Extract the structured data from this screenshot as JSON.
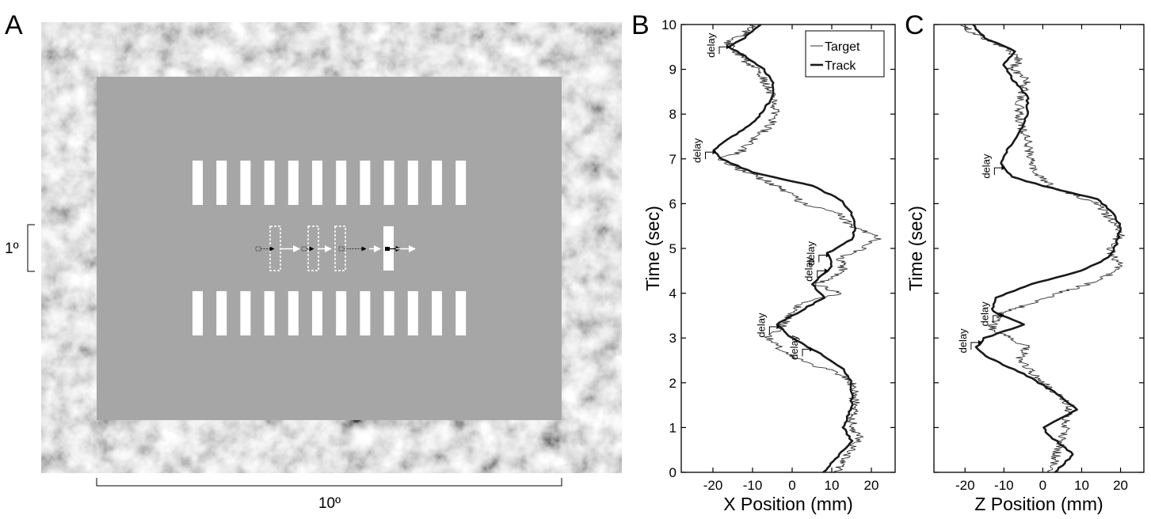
{
  "panels": {
    "a": {
      "label": "A",
      "scale_h": "10º",
      "scale_v": "1º"
    },
    "b": {
      "label": "B"
    },
    "c": {
      "label": "C"
    }
  },
  "delay_label": "delay",
  "legend": {
    "target": "Target",
    "track": "Track"
  },
  "colors": {
    "background": "#ffffff",
    "stimulus_gray": "#a6a6a6",
    "bars": "#ffffff",
    "ink": "#000000",
    "target_line": "#333333",
    "track_line": "#1a1a1a"
  },
  "chart_data": [
    {
      "type": "line",
      "title": "",
      "xlabel": "X Position (mm)",
      "ylabel": "Time (sec)",
      "xlim": [
        -28,
        26
      ],
      "ylim": [
        0,
        10
      ],
      "xticks": [
        -20,
        -10,
        0,
        10,
        20
      ],
      "xtick_labels": [
        "-20",
        "-10",
        "0",
        "10",
        "20"
      ],
      "yticks": [
        0,
        1,
        2,
        3,
        4,
        5,
        6,
        7,
        8,
        9,
        10
      ],
      "ytick_labels": [
        "0",
        "1",
        "2",
        "3",
        "4",
        "5",
        "6",
        "7",
        "8",
        "9",
        "10"
      ],
      "legend_position": "top-right",
      "delay_markers": [
        9.5,
        7.15,
        4.85,
        4.5,
        3.25,
        2.75
      ],
      "series": [
        {
          "name": "Target",
          "style": "thin",
          "t": [
            0,
            0.4,
            0.8,
            1.0,
            1.5,
            2.0,
            2.2,
            2.5,
            2.75,
            3.0,
            3.2,
            3.5,
            3.8,
            4.0,
            4.2,
            4.5,
            4.8,
            5.0,
            5.25,
            5.5,
            5.8,
            6.0,
            6.4,
            6.8,
            7.0,
            7.15,
            7.4,
            7.7,
            8.0,
            8.3,
            8.6,
            9.0,
            9.2,
            9.4,
            9.6,
            9.8,
            10.0
          ],
          "x": [
            11,
            14,
            17,
            15,
            16,
            15,
            12,
            2,
            -3,
            -6,
            -3,
            -1,
            3,
            12,
            6,
            13,
            12,
            18,
            22,
            15,
            11,
            3,
            -4,
            -14,
            -18,
            -13,
            -10,
            -6,
            -4,
            -5,
            -6,
            -9,
            -12,
            -14,
            -16,
            -12,
            -10
          ]
        },
        {
          "name": "Track",
          "style": "thick",
          "t": [
            0,
            0.3,
            0.7,
            1.0,
            1.5,
            2.0,
            2.3,
            2.6,
            3.0,
            3.3,
            3.6,
            3.9,
            4.2,
            4.6,
            4.9,
            5.2,
            5.5,
            5.8,
            6.1,
            6.4,
            6.7,
            7.0,
            7.2,
            7.5,
            7.8,
            8.1,
            8.4,
            8.7,
            9.0,
            9.3,
            9.5,
            9.7,
            10.0
          ],
          "x": [
            8,
            11,
            15,
            13,
            15,
            15,
            13,
            8,
            0,
            -4,
            2,
            8,
            5,
            10,
            9,
            15,
            16,
            15,
            12,
            5,
            -10,
            -18,
            -20,
            -15,
            -10,
            -7,
            -5,
            -5,
            -7,
            -12,
            -16,
            -12,
            -8
          ]
        }
      ]
    },
    {
      "type": "line",
      "title": "",
      "xlabel": "Z Position (mm)",
      "ylabel": "Time (sec)",
      "xlim": [
        -28,
        26
      ],
      "ylim": [
        0,
        10
      ],
      "xticks": [
        -20,
        -10,
        0,
        10,
        20
      ],
      "xtick_labels": [
        "-20",
        "-10",
        "0",
        "10",
        "20"
      ],
      "yticks": [
        0,
        1,
        2,
        3,
        4,
        5,
        6,
        7,
        8,
        9,
        10
      ],
      "ytick_labels": [
        "0",
        "1",
        "2",
        "3",
        "4",
        "5",
        "6",
        "7",
        "8",
        "9",
        "10"
      ],
      "delay_markers": [
        6.8,
        3.5,
        2.9
      ],
      "series": [
        {
          "name": "Target",
          "style": "thin",
          "t": [
            0,
            0.5,
            1.0,
            1.5,
            2.0,
            2.5,
            2.8,
            3.0,
            3.2,
            3.5,
            4.0,
            4.3,
            4.6,
            5.0,
            5.3,
            5.6,
            6.0,
            6.4,
            6.8,
            7.0,
            7.4,
            7.8,
            8.2,
            8.5,
            8.8,
            9.0,
            9.2,
            9.5,
            9.8,
            10.0
          ],
          "z": [
            2,
            4,
            6,
            7,
            0,
            -6,
            -4,
            -8,
            -13,
            -12,
            4,
            15,
            20,
            17,
            20,
            18,
            14,
            2,
            -3,
            -3,
            -4,
            -6,
            -6,
            -5,
            -4,
            -8,
            -6,
            -10,
            -18,
            -20
          ]
        },
        {
          "name": "Track",
          "style": "thick",
          "t": [
            0,
            0.4,
            0.8,
            1.0,
            1.4,
            1.8,
            2.2,
            2.6,
            2.8,
            3.0,
            3.3,
            3.6,
            3.9,
            4.2,
            4.5,
            4.8,
            5.1,
            5.5,
            5.8,
            6.1,
            6.4,
            6.6,
            6.9,
            7.2,
            7.6,
            8.0,
            8.4,
            8.8,
            9.1,
            9.4,
            9.7,
            10.0
          ],
          "z": [
            3,
            8,
            2,
            0,
            9,
            3,
            -5,
            -15,
            -17,
            -15,
            -5,
            -13,
            -12,
            -3,
            10,
            17,
            19,
            20,
            18,
            14,
            0,
            -8,
            -11,
            -9,
            -6,
            -4,
            -4,
            -8,
            -10,
            -7,
            -15,
            -18
          ]
        }
      ]
    }
  ]
}
